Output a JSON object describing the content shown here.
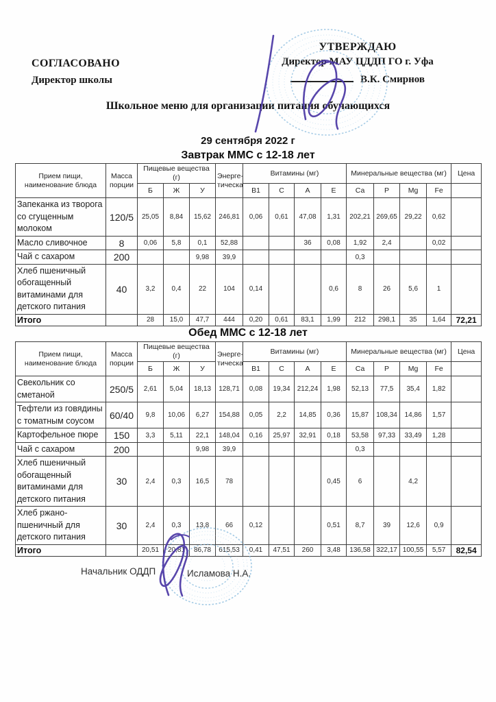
{
  "page": {
    "approved_left": {
      "line1": "СОГЛАСОВАНО",
      "line2": "Директор школы"
    },
    "approved_right": {
      "line1": "УТВЕРЖДАЮ",
      "line2": "Директор МАУ ЦДДП ГО г. Уфа",
      "line3": "В.К. Смирнов"
    },
    "title": "Школьное меню для организации питания обучающихся",
    "date": "29 сентября 2022 г",
    "footer": {
      "label": "Начальник ОДДП",
      "name": "Исламова Н.А."
    }
  },
  "colors": {
    "stamp_blue": "#8bbcde",
    "signature_purple": "#4a37a5",
    "table_border": "#3c3c3c"
  },
  "table_header": {
    "meal": "Прием пищи, наименование блюда",
    "mass": "Масса порции",
    "nutrients_group": "Пищевые вещества (г)",
    "energy": "Энерге-тическая",
    "vitamins_group": "Витамины (мг)",
    "minerals_group": "Минеральные вещества (мг)",
    "price": "Цена",
    "sub": {
      "b": "Б",
      "zh": "Ж",
      "u": "У",
      "b1": "В1",
      "c": "С",
      "a": "А",
      "e": "Е",
      "ca": "Са",
      "p": "Р",
      "mg": "Mg",
      "fe": "Fe"
    }
  },
  "tables": [
    {
      "title": "Завтрак ММС с 12-18 лет",
      "rows": [
        {
          "name": "Запеканка из творога со сгущенным молоком",
          "mass": "120/5",
          "values": [
            "25,05",
            "8,84",
            "15,62",
            "246,81",
            "0,06",
            "0,61",
            "47,08",
            "1,31",
            "202,21",
            "269,65",
            "29,22",
            "0,62"
          ]
        },
        {
          "name": "Масло сливочное",
          "mass": "8",
          "values": [
            "0,06",
            "5,8",
            "0,1",
            "52,88",
            "",
            "",
            "36",
            "0,08",
            "1,92",
            "2,4",
            "",
            "0,02"
          ]
        },
        {
          "name": "Чай с сахаром",
          "mass": "200",
          "values": [
            "",
            "",
            "9,98",
            "39,9",
            "",
            "",
            "",
            "",
            "0,3",
            "",
            "",
            ""
          ]
        },
        {
          "name": "Хлеб пшеничный обогащенный витаминами для детского питания",
          "mass": "40",
          "values": [
            "3,2",
            "0,4",
            "22",
            "104",
            "0,14",
            "",
            "",
            "0,6",
            "8",
            "26",
            "5,6",
            "1"
          ]
        }
      ],
      "total": {
        "label": "Итого",
        "values": [
          "28",
          "15,0",
          "47,7",
          "444",
          "0,20",
          "0,61",
          "83,1",
          "1,99",
          "212",
          "298,1",
          "35",
          "1,64"
        ],
        "price": "72,21"
      }
    },
    {
      "title": "Обед ММС с 12-18 лет",
      "rows": [
        {
          "name": "Свекольник со сметаной",
          "mass": "250/5",
          "values": [
            "2,61",
            "5,04",
            "18,13",
            "128,71",
            "0,08",
            "19,34",
            "212,24",
            "1,98",
            "52,13",
            "77,5",
            "35,4",
            "1,82"
          ]
        },
        {
          "name": "Тефтели из говядины с томатным соусом",
          "mass": "60/40",
          "values": [
            "9,8",
            "10,06",
            "6,27",
            "154,88",
            "0,05",
            "2,2",
            "14,85",
            "0,36",
            "15,87",
            "108,34",
            "14,86",
            "1,57"
          ]
        },
        {
          "name": "Картофельное пюре",
          "mass": "150",
          "values": [
            "3,3",
            "5,11",
            "22,1",
            "148,04",
            "0,16",
            "25,97",
            "32,91",
            "0,18",
            "53,58",
            "97,33",
            "33,49",
            "1,28"
          ]
        },
        {
          "name": "Чай с сахаром",
          "mass": "200",
          "values": [
            "",
            "",
            "9,98",
            "39,9",
            "",
            "",
            "",
            "",
            "0,3",
            "",
            "",
            ""
          ]
        },
        {
          "name": "Хлеб пшеничный обогащенный витаминами для детского питания",
          "mass": "30",
          "values": [
            "2,4",
            "0,3",
            "16,5",
            "78",
            "",
            "",
            "",
            "0,45",
            "6",
            "",
            "4,2",
            ""
          ]
        },
        {
          "name": "Хлеб ржано-пшеничный для детского питания",
          "mass": "30",
          "values": [
            "2,4",
            "0,3",
            "13,8",
            "66",
            "0,12",
            "",
            "",
            "0,51",
            "8,7",
            "39",
            "12,6",
            "0,9"
          ]
        }
      ],
      "total": {
        "label": "Итого",
        "values": [
          "20,51",
          "20,81",
          "86,78",
          "615,53",
          "0,41",
          "47,51",
          "260",
          "3,48",
          "136,58",
          "322,17",
          "100,55",
          "5,57"
        ],
        "price": "82,54"
      }
    }
  ]
}
